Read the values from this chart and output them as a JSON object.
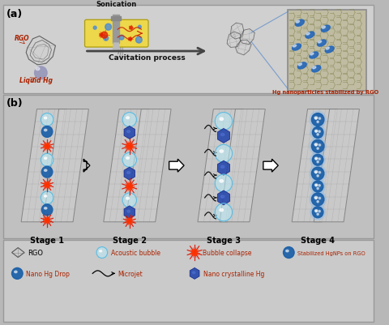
{
  "bg_color": "#b8b8b8",
  "panel_a_bg": "#cccccc",
  "panel_b_bg": "#bbbbbb",
  "legend_bg": "#c2c2c2",
  "title_a": "(a)",
  "title_b": "(b)",
  "label_rgo": "RGO",
  "label_liquid_hg": "Liquid Hg",
  "label_sonication": "Sonication",
  "label_cavitation": "Cavitation process",
  "label_hgnp": "Hg nanoparticles stabilized by RGO",
  "label_stage1": "Stage 1",
  "label_stage2": "Stage 2",
  "label_stage3": "Stage 3",
  "label_stage4": "Stage 4",
  "legend_rgo": "RGO",
  "legend_acoustic": "Acoustic bubble",
  "legend_collapse": "Bubble collapse",
  "legend_stabilized": "Stabilized HgNPs on RGO",
  "legend_nano_hg": "Nano Hg Drop",
  "legend_microjet": "Microjet",
  "legend_crystalline": "Nano crystalline Hg",
  "colors": {
    "blue_dark": "#1a5fa8",
    "blue_medium": "#4488cc",
    "blue_light": "#a0d8ef",
    "cyan_light": "#b0eaf8",
    "red_burst": "#cc2200",
    "gray_light": "#d8d8d8",
    "gray_dark": "#888888",
    "white": "#ffffff",
    "black": "#000000",
    "text_dark": "#111111",
    "text_red": "#aa2200",
    "sheet_face": "#c8c8c8",
    "sheet_edge": "#666666",
    "sheet_line": "#888866"
  }
}
